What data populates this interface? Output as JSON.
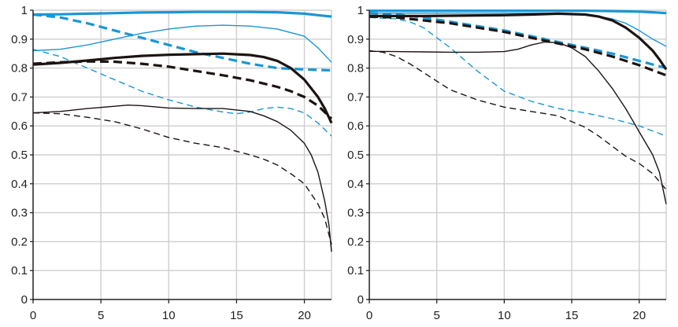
{
  "chart_data": [
    {
      "type": "line",
      "panel": "left",
      "xlim": [
        0,
        22
      ],
      "ylim": [
        0,
        1
      ],
      "xticks": [
        0,
        5,
        10,
        15,
        20
      ],
      "xtick_labels": [
        "0",
        "5",
        "10",
        "15",
        "20"
      ],
      "yticks": [
        0,
        0.1,
        0.2,
        0.3,
        0.4,
        0.5,
        0.6,
        0.7,
        0.8,
        0.9,
        1
      ],
      "ytick_labels": [
        "0",
        "0.1",
        "0.2",
        "0.3",
        "0.4",
        "0.5",
        "0.6",
        "0.7",
        "0.8",
        "0.9",
        "1"
      ],
      "grid": true,
      "series": [
        {
          "name": "blue-thick-solid",
          "color": "#1a96d4",
          "weight": "thick",
          "dash": "solid",
          "x": [
            0,
            2,
            4,
            6,
            8,
            10,
            12,
            14,
            16,
            18,
            20,
            21,
            22
          ],
          "y": [
            0.985,
            0.986,
            0.988,
            0.99,
            0.992,
            0.993,
            0.994,
            0.994,
            0.994,
            0.993,
            0.988,
            0.983,
            0.978
          ]
        },
        {
          "name": "blue-thick-dashed",
          "color": "#1a96d4",
          "weight": "thick",
          "dash": "dashed",
          "x": [
            0,
            2,
            4,
            6,
            8,
            10,
            12,
            14,
            16,
            18,
            20,
            22
          ],
          "y": [
            0.985,
            0.975,
            0.955,
            0.93,
            0.905,
            0.88,
            0.855,
            0.835,
            0.815,
            0.8,
            0.795,
            0.792
          ]
        },
        {
          "name": "blue-thin-solid",
          "color": "#1a96d4",
          "weight": "thin",
          "dash": "solid",
          "x": [
            0,
            2,
            4,
            6,
            8,
            10,
            12,
            14,
            16,
            18,
            20,
            21,
            22
          ],
          "y": [
            0.86,
            0.865,
            0.88,
            0.9,
            0.92,
            0.935,
            0.945,
            0.948,
            0.945,
            0.935,
            0.91,
            0.87,
            0.82
          ]
        },
        {
          "name": "blue-thin-dashed",
          "color": "#1a96d4",
          "weight": "thin",
          "dash": "dashed",
          "x": [
            0,
            2,
            4,
            6,
            8,
            10,
            12,
            14,
            15,
            16,
            17,
            18,
            19,
            20,
            21,
            22
          ],
          "y": [
            0.865,
            0.84,
            0.8,
            0.76,
            0.72,
            0.69,
            0.665,
            0.648,
            0.642,
            0.648,
            0.66,
            0.665,
            0.66,
            0.645,
            0.61,
            0.565
          ]
        },
        {
          "name": "black-thick-solid",
          "color": "#1c1412",
          "weight": "thick",
          "dash": "solid",
          "x": [
            0,
            2,
            4,
            6,
            8,
            10,
            12,
            14,
            16,
            17,
            18,
            19,
            20,
            21,
            21.5,
            22
          ],
          "y": [
            0.812,
            0.818,
            0.826,
            0.835,
            0.842,
            0.846,
            0.848,
            0.85,
            0.845,
            0.838,
            0.825,
            0.8,
            0.76,
            0.7,
            0.66,
            0.61
          ]
        },
        {
          "name": "black-thick-dashed",
          "color": "#1c1412",
          "weight": "thick",
          "dash": "dashed",
          "x": [
            0,
            2,
            4,
            6,
            8,
            10,
            12,
            14,
            16,
            18,
            19,
            20,
            21,
            22
          ],
          "y": [
            0.815,
            0.82,
            0.823,
            0.822,
            0.815,
            0.805,
            0.79,
            0.775,
            0.758,
            0.735,
            0.72,
            0.7,
            0.67,
            0.625
          ]
        },
        {
          "name": "black-thin-solid",
          "color": "#1c1412",
          "weight": "thin",
          "dash": "solid",
          "x": [
            0,
            2,
            4,
            6,
            7,
            8,
            10,
            12,
            14,
            16,
            17,
            18,
            19,
            20,
            20.5,
            21,
            21.5,
            21.8,
            22
          ],
          "y": [
            0.645,
            0.65,
            0.66,
            0.668,
            0.672,
            0.67,
            0.662,
            0.66,
            0.66,
            0.65,
            0.635,
            0.615,
            0.585,
            0.54,
            0.5,
            0.44,
            0.34,
            0.26,
            0.165
          ]
        },
        {
          "name": "black-thin-dashed",
          "color": "#1c1412",
          "weight": "thin",
          "dash": "dashed",
          "x": [
            0,
            2,
            4,
            6,
            8,
            10,
            12,
            14,
            16,
            17,
            18,
            19,
            20,
            21,
            21.5,
            22
          ],
          "y": [
            0.645,
            0.642,
            0.63,
            0.615,
            0.59,
            0.56,
            0.54,
            0.525,
            0.5,
            0.485,
            0.465,
            0.435,
            0.4,
            0.33,
            0.28,
            0.19
          ]
        }
      ]
    },
    {
      "type": "line",
      "panel": "right",
      "xlim": [
        0,
        22
      ],
      "ylim": [
        0,
        1
      ],
      "xticks": [
        0,
        5,
        10,
        15,
        20
      ],
      "xtick_labels": [
        "0",
        "5",
        "10",
        "15",
        "20"
      ],
      "yticks": [
        0,
        0.1,
        0.2,
        0.3,
        0.4,
        0.5,
        0.6,
        0.7,
        0.8,
        0.9,
        1
      ],
      "ytick_labels": [
        "0",
        "0.1",
        "0.2",
        "0.3",
        "0.4",
        "0.5",
        "0.6",
        "0.7",
        "0.8",
        "0.9",
        "1"
      ],
      "grid": true,
      "series": [
        {
          "name": "blue-thick-solid",
          "color": "#1a96d4",
          "weight": "thick",
          "dash": "solid",
          "x": [
            0,
            4,
            8,
            12,
            16,
            18,
            20,
            21,
            22
          ],
          "y": [
            0.998,
            0.998,
            0.998,
            0.998,
            0.998,
            0.997,
            0.995,
            0.993,
            0.99
          ]
        },
        {
          "name": "blue-thin-solid",
          "color": "#1a96d4",
          "weight": "thin",
          "dash": "solid",
          "x": [
            0,
            4,
            8,
            12,
            14,
            16,
            18,
            19,
            20,
            21,
            22
          ],
          "y": [
            0.99,
            0.99,
            0.99,
            0.99,
            0.99,
            0.985,
            0.97,
            0.955,
            0.93,
            0.9,
            0.875
          ]
        },
        {
          "name": "blue-thick-dashed",
          "color": "#1a96d4",
          "weight": "thick",
          "dash": "dashed",
          "x": [
            0,
            2,
            4,
            6,
            8,
            10,
            12,
            14,
            16,
            18,
            20,
            22
          ],
          "y": [
            0.99,
            0.985,
            0.975,
            0.96,
            0.945,
            0.93,
            0.91,
            0.89,
            0.87,
            0.85,
            0.825,
            0.8
          ]
        },
        {
          "name": "blue-thin-dashed",
          "color": "#1a96d4",
          "weight": "thin",
          "dash": "dashed",
          "x": [
            0,
            2,
            3,
            4,
            6,
            8,
            10,
            12,
            14,
            16,
            18,
            20,
            22
          ],
          "y": [
            0.975,
            0.97,
            0.96,
            0.94,
            0.87,
            0.79,
            0.72,
            0.685,
            0.66,
            0.645,
            0.625,
            0.6,
            0.565
          ]
        },
        {
          "name": "black-thick-solid",
          "color": "#1c1412",
          "weight": "thick",
          "dash": "solid",
          "x": [
            0,
            4,
            8,
            10,
            12,
            14,
            16,
            17,
            18,
            19,
            20,
            21,
            21.5,
            22
          ],
          "y": [
            0.98,
            0.98,
            0.982,
            0.983,
            0.985,
            0.988,
            0.985,
            0.978,
            0.965,
            0.94,
            0.905,
            0.86,
            0.83,
            0.795
          ]
        },
        {
          "name": "black-thick-dashed",
          "color": "#1c1412",
          "weight": "thick",
          "dash": "dashed",
          "x": [
            0,
            2,
            4,
            6,
            8,
            10,
            12,
            14,
            16,
            18,
            20,
            22
          ],
          "y": [
            0.978,
            0.975,
            0.965,
            0.955,
            0.94,
            0.925,
            0.905,
            0.885,
            0.865,
            0.84,
            0.81,
            0.775
          ]
        },
        {
          "name": "black-thin-solid",
          "color": "#1c1412",
          "weight": "thin",
          "dash": "solid",
          "x": [
            0,
            2,
            4,
            6,
            8,
            10,
            11,
            12,
            13,
            14,
            15,
            16,
            17,
            18,
            19,
            20,
            21,
            21.5,
            22
          ],
          "y": [
            0.858,
            0.857,
            0.856,
            0.855,
            0.855,
            0.857,
            0.865,
            0.88,
            0.89,
            0.888,
            0.87,
            0.84,
            0.79,
            0.73,
            0.66,
            0.58,
            0.5,
            0.44,
            0.33
          ]
        },
        {
          "name": "black-thin-dashed",
          "color": "#1c1412",
          "weight": "thin",
          "dash": "dashed",
          "x": [
            0,
            1,
            2,
            3,
            4,
            5,
            6,
            8,
            10,
            12,
            14,
            16,
            17,
            18,
            19,
            20,
            21,
            22
          ],
          "y": [
            0.86,
            0.855,
            0.84,
            0.815,
            0.785,
            0.755,
            0.725,
            0.69,
            0.665,
            0.65,
            0.635,
            0.595,
            0.565,
            0.53,
            0.495,
            0.47,
            0.435,
            0.38
          ]
        }
      ]
    }
  ]
}
